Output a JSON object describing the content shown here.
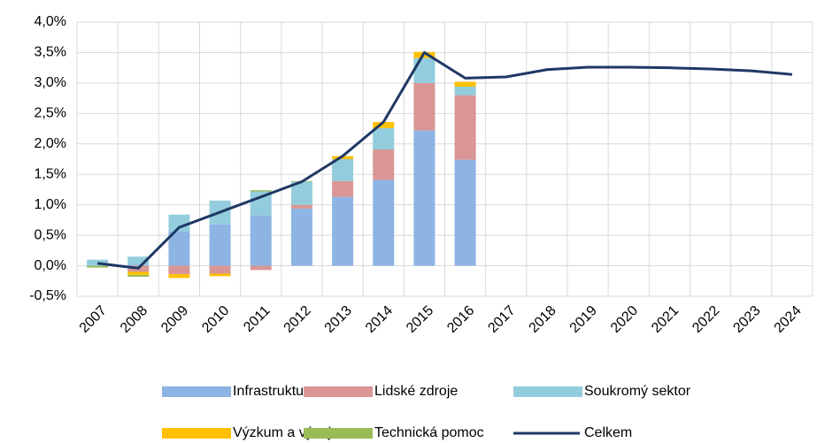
{
  "chart_data": {
    "type": "bar",
    "stacked": true,
    "grid": true,
    "categories": [
      "2007",
      "2008",
      "2009",
      "2010",
      "2011",
      "2012",
      "2013",
      "2014",
      "2015",
      "2016",
      "2017",
      "2018",
      "2019",
      "2020",
      "2021",
      "2022",
      "2023",
      "2024"
    ],
    "series": [
      {
        "name": "Infrastruktura",
        "color": "#8eb4e3",
        "values": [
          0,
          0.02,
          0.57,
          0.68,
          0.83,
          0.94,
          1.13,
          1.41,
          2.22,
          1.74,
          null,
          null,
          null,
          null,
          null,
          null,
          null,
          null
        ]
      },
      {
        "name": "Lidské zdroje",
        "color": "#d99694",
        "values": [
          0,
          -0.1,
          -0.14,
          -0.13,
          -0.07,
          0.06,
          0.26,
          0.5,
          0.78,
          1.06,
          null,
          null,
          null,
          null,
          null,
          null,
          null,
          null
        ]
      },
      {
        "name": "Soukromý sektor",
        "color": "#93cddd",
        "values": [
          0.1,
          0.13,
          0.27,
          0.39,
          0.39,
          0.38,
          0.36,
          0.35,
          0.41,
          0.14,
          null,
          null,
          null,
          null,
          null,
          null,
          null,
          null
        ]
      },
      {
        "name": "Výzkum a vývoj",
        "color": "#ffc000",
        "values": [
          0,
          -0.05,
          -0.06,
          -0.04,
          0,
          0,
          0.05,
          0.1,
          0.1,
          0.08,
          null,
          null,
          null,
          null,
          null,
          null,
          null,
          null
        ]
      },
      {
        "name": "Technická pomoc",
        "color": "#9bbb59",
        "values": [
          -0.03,
          -0.03,
          0,
          0,
          0.02,
          0.01,
          0,
          0,
          0,
          0,
          null,
          null,
          null,
          null,
          null,
          null,
          null,
          null
        ]
      },
      {
        "name": "Celkem",
        "type": "line",
        "color": "#1f3864",
        "values": [
          0.04,
          -0.04,
          0.63,
          0.88,
          1.13,
          1.38,
          1.8,
          2.36,
          3.5,
          3.08,
          3.1,
          3.22,
          3.26,
          3.26,
          3.25,
          3.23,
          3.2,
          3.14
        ]
      }
    ],
    "ylim": [
      -0.5,
      4
    ],
    "yticks": [
      {
        "value": -0.5,
        "label": "-0,5%"
      },
      {
        "value": 0,
        "label": "0,0%"
      },
      {
        "value": 0.5,
        "label": "0,5%"
      },
      {
        "value": 1,
        "label": "1,0%"
      },
      {
        "value": 1.5,
        "label": "1,5%"
      },
      {
        "value": 2,
        "label": "2,0%"
      },
      {
        "value": 2.5,
        "label": "2,5%"
      },
      {
        "value": 3,
        "label": "3,0%"
      },
      {
        "value": 3.5,
        "label": "3,5%"
      },
      {
        "value": 4,
        "label": "4,0%"
      }
    ]
  }
}
